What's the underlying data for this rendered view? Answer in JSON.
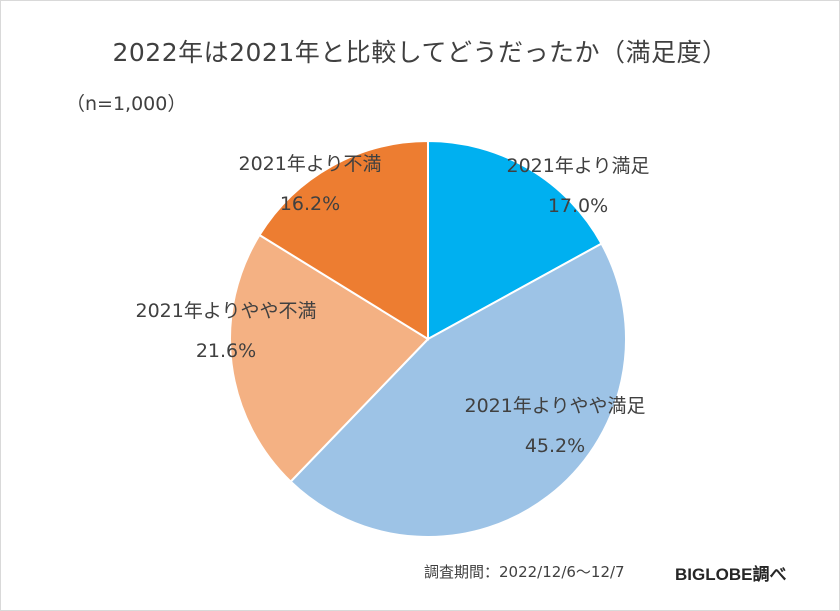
{
  "chart_data": {
    "type": "pie",
    "title": "2022年は2021年と比較してどうだったか（満足度）",
    "subtitle": "（n=1,000）",
    "slices": [
      {
        "label": "2021年より満足",
        "value": 17.0,
        "value_text": "17.0%",
        "color": "#00b0f0"
      },
      {
        "label": "2021年よりやや満足",
        "value": 45.2,
        "value_text": "45.2%",
        "color": "#9dc3e6"
      },
      {
        "label": "2021年よりやや不満",
        "value": 21.6,
        "value_text": "21.6%",
        "color": "#f4b183"
      },
      {
        "label": "2021年より不満",
        "value": 16.2,
        "value_text": "16.2%",
        "color": "#ed7d31"
      }
    ]
  },
  "footer": {
    "period": "調査期間：2022/12/6～12/7",
    "source": "BIGLOBE調べ"
  }
}
